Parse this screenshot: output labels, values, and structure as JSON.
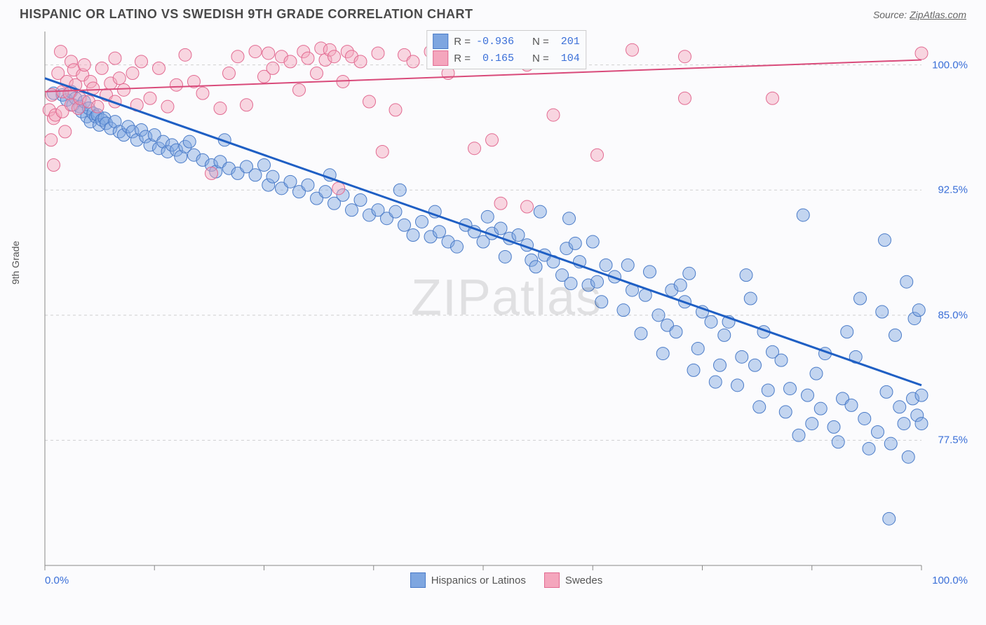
{
  "title": "HISPANIC OR LATINO VS SWEDISH 9TH GRADE CORRELATION CHART",
  "source_label": "Source:",
  "source_name": "ZipAtlas.com",
  "y_axis_label": "9th Grade",
  "watermark": "ZIPatlas",
  "chart": {
    "type": "scatter",
    "background_color": "#fbfbfd",
    "plot_border_color": "#888888",
    "grid_color": "#d0d0d0",
    "grid_dash": "4,4",
    "x_domain": [
      0,
      100
    ],
    "y_domain": [
      70,
      102
    ],
    "x_ticks_minor": [
      0,
      12.5,
      25,
      37.5,
      50,
      62.5,
      75,
      87.5,
      100
    ],
    "x_tick_labels": [
      "0.0%",
      "100.0%"
    ],
    "y_ticks": [
      77.5,
      85.0,
      92.5,
      100.0
    ],
    "y_tick_labels": [
      "77.5%",
      "85.0%",
      "92.5%",
      "100.0%"
    ],
    "x_label_color": "#3a6fd8",
    "y_label_color": "#3a6fd8",
    "series": [
      {
        "id": "hispanics",
        "label": "Hispanics or Latinos",
        "color_fill": "#7ea6e0",
        "color_stroke": "#4a7bc8",
        "fill_opacity": 0.45,
        "marker_radius": 9,
        "trend_color": "#1f5fc4",
        "trend_width": 3,
        "trend": {
          "x1": 0,
          "y1": 99.2,
          "x2": 100,
          "y2": 80.8
        },
        "R": "-0.936",
        "N": "201",
        "points": [
          [
            1,
            98.3
          ],
          [
            2,
            98.2
          ],
          [
            2.5,
            97.9
          ],
          [
            3,
            98.4
          ],
          [
            3.2,
            97.6
          ],
          [
            3.5,
            98.0
          ],
          [
            4,
            97.5
          ],
          [
            4.2,
            97.2
          ],
          [
            4.5,
            97.8
          ],
          [
            4.8,
            96.9
          ],
          [
            5,
            97.4
          ],
          [
            5.2,
            96.6
          ],
          [
            5.5,
            97.1
          ],
          [
            5.8,
            96.9
          ],
          [
            6,
            97.0
          ],
          [
            6.2,
            96.4
          ],
          [
            6.5,
            96.7
          ],
          [
            6.8,
            96.8
          ],
          [
            7,
            96.5
          ],
          [
            7.5,
            96.2
          ],
          [
            8,
            96.6
          ],
          [
            8.5,
            96.0
          ],
          [
            9,
            95.8
          ],
          [
            9.5,
            96.3
          ],
          [
            10,
            96.0
          ],
          [
            10.5,
            95.5
          ],
          [
            11,
            96.1
          ],
          [
            11.5,
            95.7
          ],
          [
            12,
            95.2
          ],
          [
            12.5,
            95.8
          ],
          [
            13,
            95.0
          ],
          [
            13.5,
            95.4
          ],
          [
            14,
            94.8
          ],
          [
            14.5,
            95.2
          ],
          [
            15,
            94.9
          ],
          [
            15.5,
            94.5
          ],
          [
            16,
            95.1
          ],
          [
            16.5,
            95.4
          ],
          [
            17,
            94.6
          ],
          [
            18,
            94.3
          ],
          [
            19,
            94.0
          ],
          [
            19.5,
            93.6
          ],
          [
            20,
            94.2
          ],
          [
            20.5,
            95.5
          ],
          [
            21,
            93.8
          ],
          [
            22,
            93.5
          ],
          [
            23,
            93.9
          ],
          [
            24,
            93.4
          ],
          [
            25,
            94.0
          ],
          [
            25.5,
            92.8
          ],
          [
            26,
            93.3
          ],
          [
            27,
            92.6
          ],
          [
            28,
            93.0
          ],
          [
            29,
            92.4
          ],
          [
            30,
            92.8
          ],
          [
            31,
            92.0
          ],
          [
            32,
            92.4
          ],
          [
            32.5,
            93.4
          ],
          [
            33,
            91.7
          ],
          [
            34,
            92.2
          ],
          [
            35,
            91.3
          ],
          [
            36,
            91.9
          ],
          [
            37,
            91.0
          ],
          [
            38,
            91.3
          ],
          [
            39,
            90.8
          ],
          [
            40,
            91.2
          ],
          [
            40.5,
            92.5
          ],
          [
            41,
            90.4
          ],
          [
            42,
            89.8
          ],
          [
            43,
            90.6
          ],
          [
            44,
            89.7
          ],
          [
            44.5,
            91.2
          ],
          [
            45,
            90.0
          ],
          [
            46,
            89.4
          ],
          [
            47,
            89.1
          ],
          [
            48,
            90.4
          ],
          [
            49,
            90.0
          ],
          [
            50,
            89.4
          ],
          [
            50.5,
            90.9
          ],
          [
            51,
            89.9
          ],
          [
            52,
            90.2
          ],
          [
            52.5,
            88.5
          ],
          [
            53,
            89.6
          ],
          [
            54,
            89.8
          ],
          [
            55,
            89.2
          ],
          [
            55.5,
            88.3
          ],
          [
            56,
            87.9
          ],
          [
            56.5,
            91.2
          ],
          [
            57,
            88.6
          ],
          [
            58,
            88.2
          ],
          [
            59,
            87.4
          ],
          [
            59.5,
            89.0
          ],
          [
            59.8,
            90.8
          ],
          [
            60,
            86.9
          ],
          [
            60.5,
            89.3
          ],
          [
            61,
            88.2
          ],
          [
            62,
            86.8
          ],
          [
            62.5,
            89.4
          ],
          [
            63,
            87.0
          ],
          [
            63.5,
            85.8
          ],
          [
            64,
            88.0
          ],
          [
            65,
            87.3
          ],
          [
            66,
            85.3
          ],
          [
            66.5,
            88.0
          ],
          [
            67,
            86.5
          ],
          [
            68,
            83.9
          ],
          [
            68.5,
            86.2
          ],
          [
            69,
            87.6
          ],
          [
            70,
            85.0
          ],
          [
            70.5,
            82.7
          ],
          [
            71,
            84.4
          ],
          [
            71.5,
            86.5
          ],
          [
            72,
            84.0
          ],
          [
            72.5,
            86.8
          ],
          [
            73,
            85.8
          ],
          [
            73.5,
            87.5
          ],
          [
            74,
            81.7
          ],
          [
            74.5,
            83.0
          ],
          [
            75,
            85.2
          ],
          [
            76,
            84.6
          ],
          [
            76.5,
            81.0
          ],
          [
            77,
            82.0
          ],
          [
            77.5,
            83.8
          ],
          [
            78,
            84.6
          ],
          [
            79,
            80.8
          ],
          [
            79.5,
            82.5
          ],
          [
            80,
            87.4
          ],
          [
            80.5,
            86.0
          ],
          [
            81,
            82.0
          ],
          [
            81.5,
            79.5
          ],
          [
            82,
            84.0
          ],
          [
            82.5,
            80.5
          ],
          [
            83,
            82.8
          ],
          [
            84,
            82.3
          ],
          [
            84.5,
            79.2
          ],
          [
            85,
            80.6
          ],
          [
            86,
            77.8
          ],
          [
            86.5,
            91.0
          ],
          [
            87,
            80.2
          ],
          [
            87.5,
            78.5
          ],
          [
            88,
            81.5
          ],
          [
            88.5,
            79.4
          ],
          [
            89,
            82.7
          ],
          [
            90,
            78.3
          ],
          [
            90.5,
            77.4
          ],
          [
            91,
            80.0
          ],
          [
            91.5,
            84.0
          ],
          [
            92,
            79.6
          ],
          [
            92.5,
            82.5
          ],
          [
            93,
            86.0
          ],
          [
            93.5,
            78.8
          ],
          [
            94,
            77.0
          ],
          [
            95,
            78.0
          ],
          [
            95.5,
            85.2
          ],
          [
            95.8,
            89.5
          ],
          [
            96,
            80.4
          ],
          [
            96.3,
            72.8
          ],
          [
            96.5,
            77.3
          ],
          [
            97,
            83.8
          ],
          [
            97.5,
            79.5
          ],
          [
            98,
            78.5
          ],
          [
            98.3,
            87.0
          ],
          [
            98.5,
            76.5
          ],
          [
            99,
            80.0
          ],
          [
            99.2,
            84.8
          ],
          [
            99.5,
            79.0
          ],
          [
            99.7,
            85.3
          ],
          [
            100,
            80.2
          ],
          [
            100,
            78.5
          ]
        ]
      },
      {
        "id": "swedes",
        "label": "Swedes",
        "color_fill": "#f4a6bd",
        "color_stroke": "#e26a91",
        "fill_opacity": 0.45,
        "marker_radius": 9,
        "trend_color": "#d94a7a",
        "trend_width": 2,
        "trend": {
          "x1": 0,
          "y1": 98.4,
          "x2": 100,
          "y2": 100.3
        },
        "R": "0.165",
        "N": "104",
        "points": [
          [
            0.5,
            97.3
          ],
          [
            0.7,
            95.5
          ],
          [
            0.8,
            98.2
          ],
          [
            1,
            96.8
          ],
          [
            1,
            94.0
          ],
          [
            1.2,
            97.0
          ],
          [
            1.5,
            99.5
          ],
          [
            1.8,
            100.8
          ],
          [
            2,
            98.4
          ],
          [
            2,
            97.2
          ],
          [
            2.3,
            96.0
          ],
          [
            2.5,
            99.0
          ],
          [
            2.8,
            98.3
          ],
          [
            3,
            97.6
          ],
          [
            3,
            100.2
          ],
          [
            3.3,
            99.7
          ],
          [
            3.5,
            98.8
          ],
          [
            3.8,
            97.4
          ],
          [
            4,
            98.0
          ],
          [
            4.3,
            99.4
          ],
          [
            4.5,
            100.0
          ],
          [
            5,
            97.8
          ],
          [
            5.2,
            99.0
          ],
          [
            5.5,
            98.6
          ],
          [
            6,
            97.5
          ],
          [
            6.5,
            99.8
          ],
          [
            7,
            98.2
          ],
          [
            7.5,
            98.9
          ],
          [
            8,
            97.8
          ],
          [
            8,
            100.4
          ],
          [
            8.5,
            99.2
          ],
          [
            9,
            98.5
          ],
          [
            10,
            99.5
          ],
          [
            10.5,
            97.6
          ],
          [
            11,
            100.2
          ],
          [
            12,
            98.0
          ],
          [
            13,
            99.8
          ],
          [
            14,
            97.5
          ],
          [
            15,
            98.8
          ],
          [
            16,
            100.6
          ],
          [
            17,
            99.0
          ],
          [
            18,
            98.3
          ],
          [
            19,
            93.5
          ],
          [
            20,
            97.4
          ],
          [
            21,
            99.5
          ],
          [
            22,
            100.5
          ],
          [
            23,
            97.6
          ],
          [
            24,
            100.8
          ],
          [
            25,
            99.3
          ],
          [
            25.5,
            100.7
          ],
          [
            26,
            99.8
          ],
          [
            27,
            100.5
          ],
          [
            28,
            100.2
          ],
          [
            29,
            98.5
          ],
          [
            29.5,
            100.8
          ],
          [
            30,
            100.4
          ],
          [
            31,
            99.5
          ],
          [
            31.5,
            101.0
          ],
          [
            32,
            100.3
          ],
          [
            32.5,
            100.9
          ],
          [
            33,
            100.5
          ],
          [
            33.5,
            92.6
          ],
          [
            34,
            99.0
          ],
          [
            34.5,
            100.8
          ],
          [
            35,
            100.5
          ],
          [
            36,
            100.2
          ],
          [
            37,
            97.8
          ],
          [
            38,
            100.7
          ],
          [
            38.5,
            94.8
          ],
          [
            40,
            97.3
          ],
          [
            41,
            100.6
          ],
          [
            42,
            100.2
          ],
          [
            44,
            100.8
          ],
          [
            46,
            99.5
          ],
          [
            48,
            100.5
          ],
          [
            49,
            95.0
          ],
          [
            51,
            95.5
          ],
          [
            52,
            91.7
          ],
          [
            53,
            100.4
          ],
          [
            55,
            100.0
          ],
          [
            55,
            91.5
          ],
          [
            58,
            97.0
          ],
          [
            59,
            100.7
          ],
          [
            63,
            94.6
          ],
          [
            67,
            100.9
          ],
          [
            73,
            100.5
          ],
          [
            73,
            98.0
          ],
          [
            83,
            98.0
          ],
          [
            100,
            100.7
          ]
        ]
      }
    ]
  },
  "stats_legend": {
    "rows": [
      {
        "swatch_fill": "#7ea6e0",
        "swatch_stroke": "#4a7bc8",
        "R": "-0.936",
        "N": "201"
      },
      {
        "swatch_fill": "#f4a6bd",
        "swatch_stroke": "#e26a91",
        "R": "0.165",
        "N": "104"
      }
    ],
    "r_label": "R =",
    "n_label": "N ="
  },
  "bottom_legend": {
    "items": [
      {
        "swatch_fill": "#7ea6e0",
        "swatch_stroke": "#4a7bc8",
        "label": "Hispanics or Latinos"
      },
      {
        "swatch_fill": "#f4a6bd",
        "swatch_stroke": "#e26a91",
        "label": "Swedes"
      }
    ]
  }
}
